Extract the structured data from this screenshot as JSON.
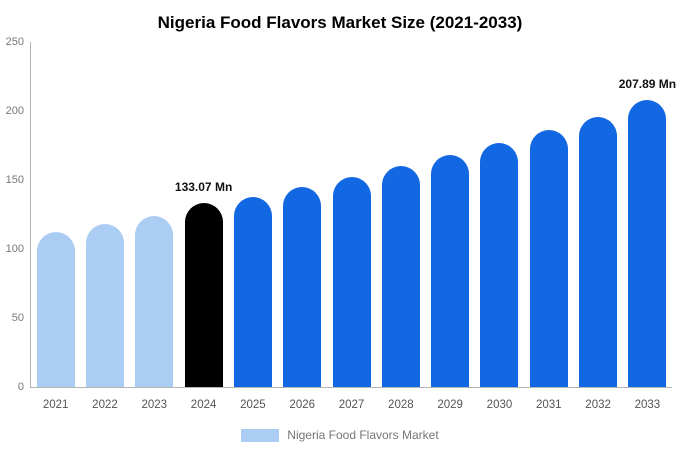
{
  "title": "Nigeria Food Flavors Market Size (2021-2033)",
  "legend": {
    "label": "Nigeria Food Flavors Market",
    "swatch_color": "#abcdf4"
  },
  "colors": {
    "historical": "#abcdf4",
    "base_year": "#000000",
    "forecast": "#1267e2",
    "axis": "#b5b5b5"
  },
  "chart_data": {
    "type": "bar",
    "title": "Nigeria Food Flavors Market Size (2021-2033)",
    "categories": [
      "2021",
      "2022",
      "2023",
      "2024",
      "2025",
      "2026",
      "2027",
      "2028",
      "2029",
      "2030",
      "2031",
      "2032",
      "2033"
    ],
    "values": [
      112,
      118,
      124,
      133.07,
      138,
      145,
      152,
      160,
      168,
      177,
      186,
      196,
      207.89
    ],
    "unit": "Mn",
    "bar_colors": [
      "#abcdf4",
      "#abcdf4",
      "#abcdf4",
      "#000000",
      "#1267e2",
      "#1267e2",
      "#1267e2",
      "#1267e2",
      "#1267e2",
      "#1267e2",
      "#1267e2",
      "#1267e2",
      "#1267e2"
    ],
    "annotations": [
      {
        "category": "2024",
        "text": "133.07 Mn"
      },
      {
        "category": "2033",
        "text": "207.89 Mn"
      }
    ],
    "xlabel": "",
    "ylabel": "",
    "ylim": [
      0,
      250
    ],
    "yticks": [
      0,
      50,
      100,
      150,
      200,
      250
    ],
    "grid": false,
    "legend_position": "bottom",
    "legend_entries": [
      "Nigeria Food Flavors Market"
    ]
  }
}
